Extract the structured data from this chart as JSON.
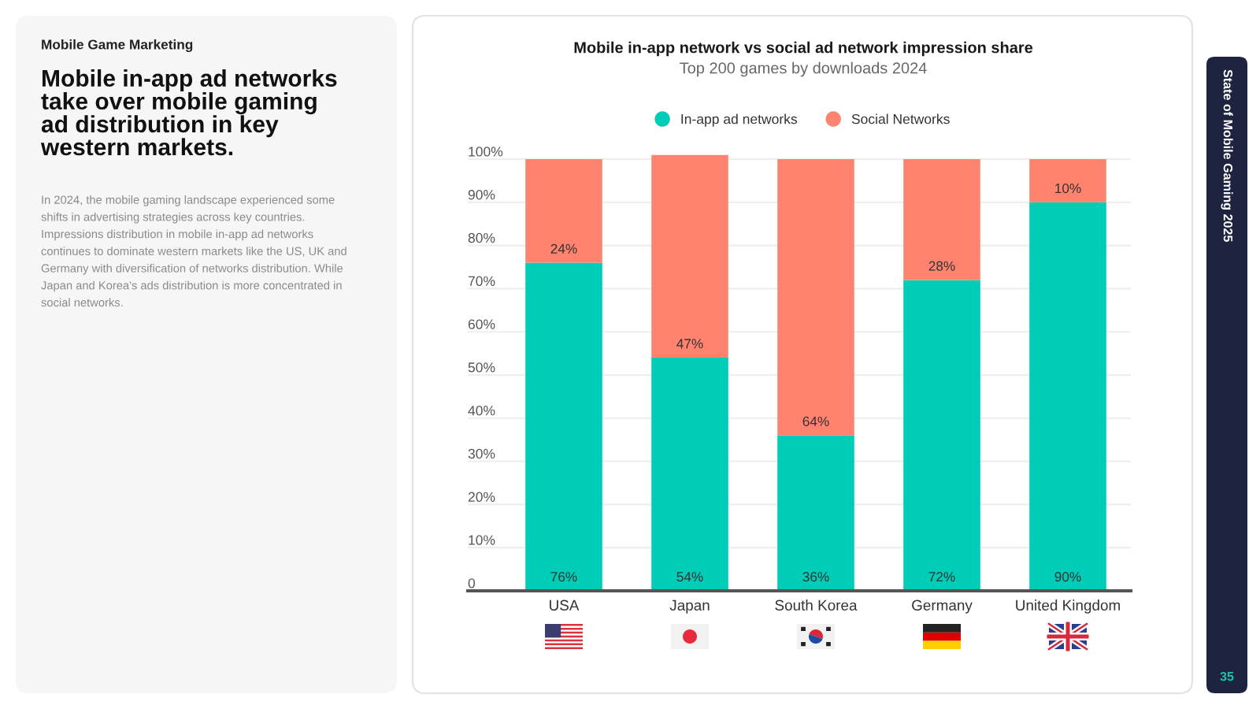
{
  "chart_data": {
    "type": "bar",
    "title": "Mobile in-app network vs social ad network impression share",
    "subtitle": "Top 200 games by downloads 2024",
    "categories": [
      "USA",
      "Japan",
      "South Korea",
      "Germany",
      "United Kingdom"
    ],
    "stacked": true,
    "series": [
      {
        "name": "In-app ad networks",
        "color": "#00cdb7",
        "values": [
          76,
          54,
          36,
          72,
          90
        ],
        "value_labels": [
          "76%",
          "54%",
          "36%",
          "72%",
          "90%"
        ]
      },
      {
        "name": "Social Networks",
        "color": "#ff836e",
        "values": [
          24,
          47,
          64,
          28,
          10
        ],
        "value_labels": [
          "24%",
          "47%",
          "64%",
          "28%",
          "10%"
        ]
      }
    ],
    "ylim": [
      0,
      101
    ],
    "yticks": [
      0,
      {
        "value": 10,
        "label": "10%"
      },
      {
        "value": 20,
        "label": "20%"
      },
      {
        "value": 30,
        "label": "30%"
      },
      {
        "value": 40,
        "label": "40%"
      },
      {
        "value": 50,
        "label": "50%"
      },
      {
        "value": 60,
        "label": "60%"
      },
      {
        "value": 70,
        "label": "70%"
      },
      {
        "value": 80,
        "label": "80%"
      },
      {
        "value": 90,
        "label": "90%"
      },
      {
        "value": 100,
        "label": "100%"
      }
    ],
    "grid": "y",
    "legend": "top",
    "annotations": [
      "Mobile Game Marketing",
      "Mobile in-app ad networks take over mobile gaming ad distribution in key western markets.",
      "In 2024, the mobile gaming landscape experienced some shifts in advertising strategies across key countries. Impressions distribution in mobile in-app ad networks continues to dominate western markets like the US, UK and Germany with diversification of networks distribution. While Japan and Korea's ads distribution is more concentrated in social networks.",
      "State of Mobile Gaming 2025",
      "35"
    ]
  }
}
